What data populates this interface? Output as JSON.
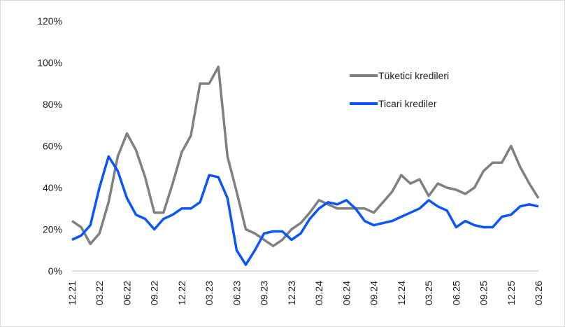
{
  "chart_data": {
    "type": "line",
    "categories": [
      "12.21",
      null,
      null,
      "03.22",
      null,
      null,
      "06.22",
      null,
      null,
      "09.22",
      null,
      null,
      "12.22",
      null,
      null,
      "03.23",
      null,
      null,
      "06.23",
      null,
      null,
      "09.23",
      null,
      null,
      "12.23",
      null,
      null,
      "03.24",
      null,
      null,
      "06.24",
      null,
      null,
      "09.24",
      null,
      null,
      "12.24",
      null,
      null,
      "03.25",
      null,
      null,
      "06.25",
      null,
      null,
      "09.25",
      null,
      null,
      "12.25",
      null,
      null,
      "03.26"
    ],
    "series": [
      {
        "name": "Tüketici kredileri",
        "color": "#808080",
        "values": [
          24,
          21,
          13,
          18,
          33,
          55,
          66,
          58,
          45,
          28,
          28,
          42,
          57,
          65,
          90,
          90,
          98,
          55,
          38,
          20,
          18,
          15,
          12,
          15,
          20,
          23,
          28,
          34,
          32,
          30,
          30,
          30,
          30,
          28,
          33,
          38,
          46,
          42,
          44,
          36,
          42,
          40,
          39,
          37,
          40,
          48,
          52,
          52,
          60,
          50,
          42,
          35
        ]
      },
      {
        "name": "Ticari krediler",
        "color": "#0a55ff",
        "values": [
          15,
          17,
          22,
          40,
          55,
          48,
          35,
          27,
          25,
          20,
          25,
          27,
          30,
          30,
          33,
          46,
          45,
          35,
          10,
          3,
          10,
          18,
          19,
          19,
          15,
          18,
          25,
          30,
          33,
          32,
          34,
          30,
          24,
          22,
          23,
          24,
          26,
          28,
          30,
          34,
          31,
          29,
          21,
          24,
          22,
          21,
          21,
          26,
          27,
          31,
          32,
          31
        ]
      }
    ],
    "ylim": [
      0,
      120
    ],
    "yticks": [
      {
        "value": 0,
        "label": "0%"
      },
      {
        "value": 20,
        "label": "20%"
      },
      {
        "value": 40,
        "label": "40%"
      },
      {
        "value": 60,
        "label": "60%"
      },
      {
        "value": 80,
        "label": "80%"
      },
      {
        "value": 100,
        "label": "100%"
      },
      {
        "value": 120,
        "label": "120%"
      }
    ],
    "grid": false,
    "legend": "right"
  }
}
